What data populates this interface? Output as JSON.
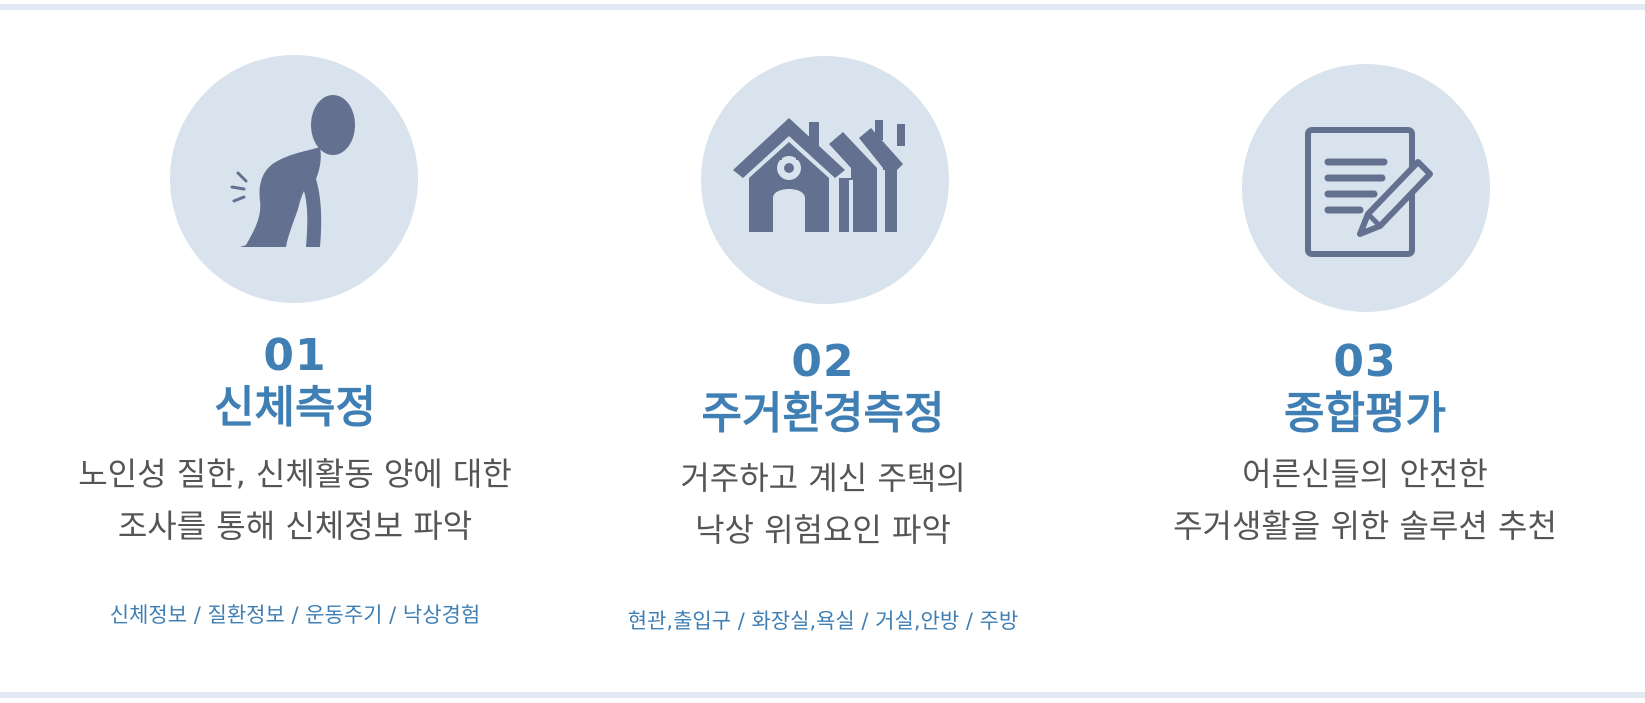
{
  "colors": {
    "accent": "#3f7fb4",
    "circle_bg": "#d8e3ee",
    "icon": "#64708f",
    "text": "#555555",
    "rule": "#e2e9f4"
  },
  "steps": [
    {
      "number": "01",
      "title": "신체측정",
      "desc_line1": "노인성 질한, 신체활동 양에 대한",
      "desc_line2": "조사를 통해 신체정보 파악",
      "tags": "신체정보 / 질환정보 / 운동주기 / 낙상경험",
      "icon": "back-pain-person-icon"
    },
    {
      "number": "02",
      "title": "주거환경측정",
      "desc_line1": "거주하고 계신 주택의",
      "desc_line2": "낙상 위험요인 파악",
      "tags": "현관,출입구 / 화장실,욕실 / 거실,안방 / 주방",
      "icon": "houses-icon"
    },
    {
      "number": "03",
      "title": "종합평가",
      "desc_line1": "어른신들의 안전한",
      "desc_line2": "주거생활을 위한 솔루션 추천",
      "tags": "",
      "icon": "document-pencil-icon"
    }
  ]
}
